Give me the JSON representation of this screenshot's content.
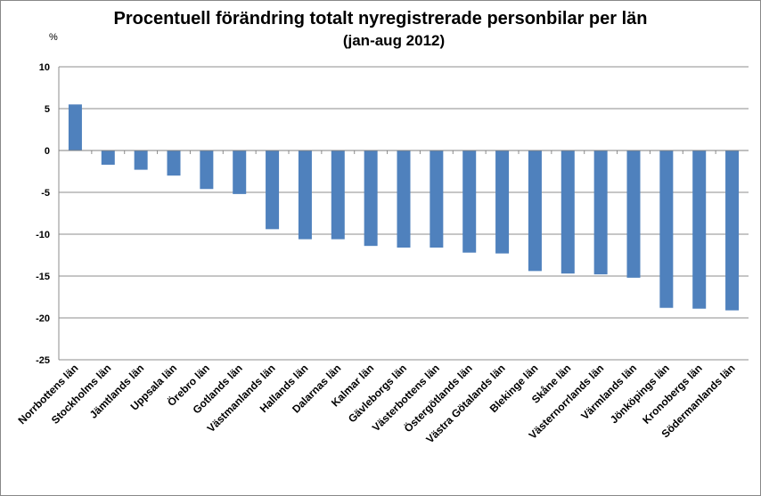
{
  "chart_data": {
    "type": "bar",
    "title": "Procentuell förändring totalt nyregistrerade personbilar per län",
    "subtitle": "(jan-aug 2012)",
    "ylabel": "%",
    "xlabel": "",
    "ylim": [
      -25,
      10
    ],
    "yticks": [
      10,
      5,
      0,
      -5,
      -10,
      -15,
      -20,
      -25
    ],
    "grid": true,
    "bar_color": "#4f81bd",
    "categories": [
      "Norrbottens län",
      "Stockholms län",
      "Jämtlands län",
      "Uppsala län",
      "Örebro län",
      "Gotlands län",
      "Västmanlands län",
      "Hallands län",
      "Dalarnas län",
      "Kalmar län",
      "Gävleborgs län",
      "Västerbottens län",
      "Östergötlands län",
      "Västra Götalands län",
      "Blekinge län",
      "Skåne län",
      "Västernorrlands län",
      "Värmlands län",
      "Jönköpings län",
      "Kronobergs län",
      "Södermanlands län"
    ],
    "values": [
      5.5,
      -1.7,
      -2.3,
      -3.0,
      -4.6,
      -5.2,
      -9.4,
      -10.6,
      -10.6,
      -11.4,
      -11.6,
      -11.6,
      -12.2,
      -12.3,
      -14.4,
      -14.7,
      -14.8,
      -15.2,
      -18.8,
      -18.9,
      -19.1
    ]
  }
}
